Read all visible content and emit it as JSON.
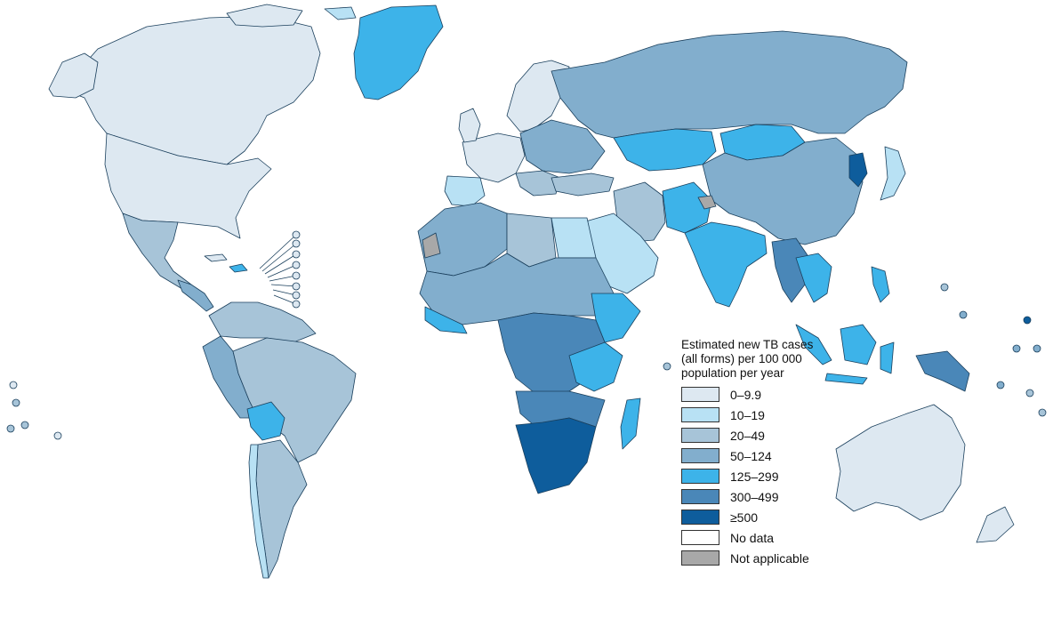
{
  "legend": {
    "title": "Estimated new TB cases (all forms) per 100 000 population per year",
    "items": [
      {
        "label": "0–9.9",
        "color": "#dde8f1"
      },
      {
        "label": "10–19",
        "color": "#b8e1f4"
      },
      {
        "label": "20–49",
        "color": "#a7c4d8"
      },
      {
        "label": "50–124",
        "color": "#82aecd"
      },
      {
        "label": "125–299",
        "color": "#3db3e9"
      },
      {
        "label": "300–499",
        "color": "#4a87b8"
      },
      {
        "label": "≥500",
        "color": "#0e5d9c"
      },
      {
        "label": "No data",
        "color": "#ffffff"
      },
      {
        "label": "Not applicable",
        "color": "#a8a8a8"
      }
    ]
  }
}
